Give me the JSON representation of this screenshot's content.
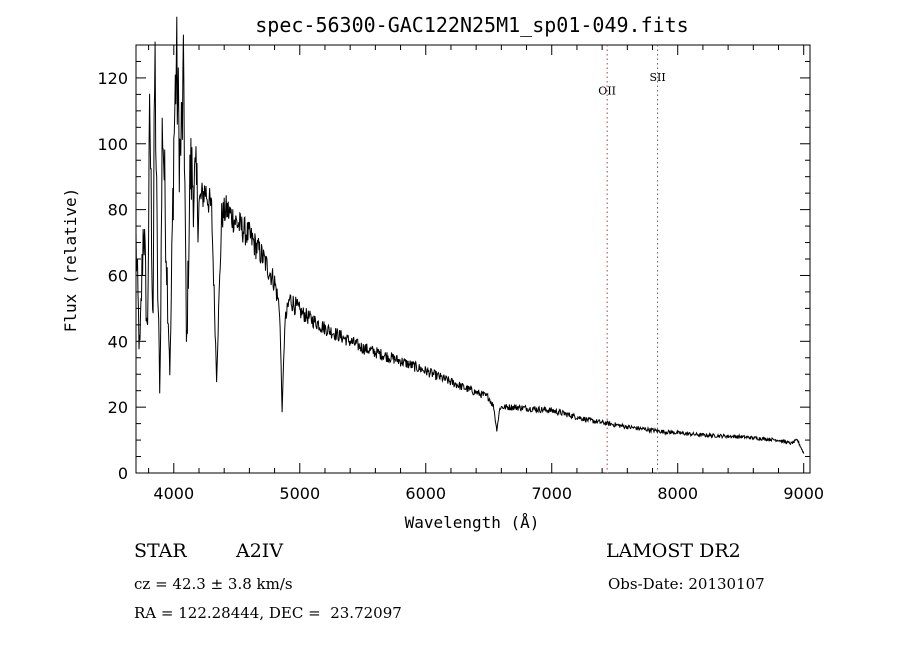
{
  "chart_data": {
    "type": "line",
    "title": "spec-56300-GAC122N25M1_sp01-049.fits",
    "xlabel": "Wavelength (Å)",
    "ylabel": "Flux (relative)",
    "xlim": [
      3700,
      9050
    ],
    "ylim": [
      0,
      130
    ],
    "xticks": [
      4000,
      5000,
      6000,
      7000,
      8000,
      9000
    ],
    "yticks": [
      0,
      20,
      40,
      60,
      80,
      100,
      120
    ],
    "grid": false,
    "series": [
      {
        "name": "spectrum",
        "anchors": [
          [
            3700,
            70
          ],
          [
            3730,
            35
          ],
          [
            3760,
            78
          ],
          [
            3790,
            40
          ],
          [
            3810,
            110
          ],
          [
            3835,
            45
          ],
          [
            3850,
            128
          ],
          [
            3870,
            60
          ],
          [
            3890,
            24
          ],
          [
            3910,
            110
          ],
          [
            3940,
            70
          ],
          [
            3970,
            30
          ],
          [
            4000,
            100
          ],
          [
            4020,
            125
          ],
          [
            4050,
            95
          ],
          [
            4080,
            118
          ],
          [
            4101,
            35
          ],
          [
            4130,
            92
          ],
          [
            4160,
            88
          ],
          [
            4200,
            82
          ],
          [
            4250,
            86
          ],
          [
            4300,
            80
          ],
          [
            4340,
            29
          ],
          [
            4380,
            78
          ],
          [
            4420,
            80
          ],
          [
            4500,
            76
          ],
          [
            4600,
            72
          ],
          [
            4700,
            66
          ],
          [
            4800,
            58
          ],
          [
            4840,
            50
          ],
          [
            4861,
            18
          ],
          [
            4880,
            45
          ],
          [
            4920,
            53
          ],
          [
            5000,
            49
          ],
          [
            5200,
            44
          ],
          [
            5500,
            38
          ],
          [
            5800,
            34
          ],
          [
            6000,
            31
          ],
          [
            6300,
            26
          ],
          [
            6500,
            23
          ],
          [
            6540,
            20
          ],
          [
            6563,
            13
          ],
          [
            6590,
            20
          ],
          [
            6700,
            20
          ],
          [
            7000,
            19
          ],
          [
            7300,
            16
          ],
          [
            7600,
            14
          ],
          [
            7900,
            12.5
          ],
          [
            8200,
            11.5
          ],
          [
            8500,
            11
          ],
          [
            8800,
            10
          ],
          [
            8900,
            9
          ],
          [
            8950,
            10
          ],
          [
            9000,
            6
          ]
        ]
      }
    ],
    "annotations": [
      {
        "label": "OII",
        "x": 7440,
        "y": 115
      },
      {
        "label": "SII",
        "x": 7840,
        "y": 119
      }
    ]
  },
  "info": {
    "object_class": "STAR",
    "subclass": "A2IV",
    "survey": "LAMOST DR2",
    "cz": "cz = 42.3 ± 3.8 km/s",
    "obs_date": "Obs-Date: 20130107",
    "radec": "RA = 122.28444, DEC =  23.72097"
  },
  "colors": {
    "axis": "#000000",
    "spectrum": "#000000",
    "line_marker": "#d0303a"
  }
}
